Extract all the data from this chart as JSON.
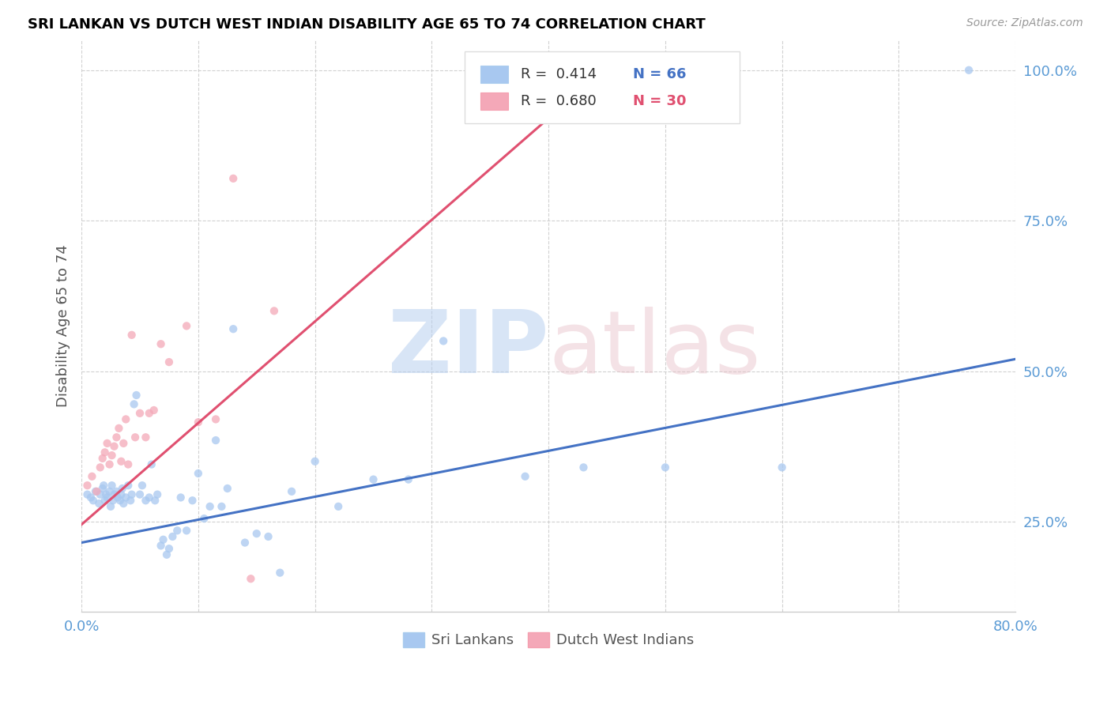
{
  "title": "SRI LANKAN VS DUTCH WEST INDIAN DISABILITY AGE 65 TO 74 CORRELATION CHART",
  "source": "Source: ZipAtlas.com",
  "ylabel": "Disability Age 65 to 74",
  "xlim": [
    0.0,
    0.8
  ],
  "ylim": [
    0.1,
    1.05
  ],
  "ytick_vals": [
    0.25,
    0.5,
    0.75,
    1.0
  ],
  "ytick_labels": [
    "25.0%",
    "50.0%",
    "75.0%",
    "100.0%"
  ],
  "xtick_positions": [
    0.0,
    0.1,
    0.2,
    0.3,
    0.4,
    0.5,
    0.6,
    0.7,
    0.8
  ],
  "sri_lankan_color": "#a8c8f0",
  "dutch_color": "#f4a8b8",
  "sri_lankan_line_color": "#4472c4",
  "dutch_line_color": "#e05070",
  "legend_r1": "R =  0.414",
  "legend_n1": "N = 66",
  "legend_r2": "R =  0.680",
  "legend_n2": "N = 30",
  "sri_lankans_x": [
    0.005,
    0.008,
    0.01,
    0.012,
    0.015,
    0.016,
    0.018,
    0.019,
    0.02,
    0.021,
    0.022,
    0.024,
    0.025,
    0.026,
    0.027,
    0.028,
    0.03,
    0.031,
    0.033,
    0.034,
    0.035,
    0.036,
    0.038,
    0.04,
    0.042,
    0.043,
    0.045,
    0.047,
    0.05,
    0.052,
    0.055,
    0.058,
    0.06,
    0.063,
    0.065,
    0.068,
    0.07,
    0.073,
    0.075,
    0.078,
    0.082,
    0.085,
    0.09,
    0.095,
    0.1,
    0.105,
    0.11,
    0.115,
    0.12,
    0.125,
    0.13,
    0.14,
    0.15,
    0.16,
    0.17,
    0.18,
    0.2,
    0.22,
    0.25,
    0.28,
    0.31,
    0.38,
    0.43,
    0.5,
    0.6,
    0.76
  ],
  "sri_lankans_y": [
    0.295,
    0.29,
    0.285,
    0.3,
    0.28,
    0.295,
    0.305,
    0.31,
    0.285,
    0.295,
    0.29,
    0.3,
    0.275,
    0.31,
    0.285,
    0.295,
    0.3,
    0.29,
    0.285,
    0.295,
    0.305,
    0.28,
    0.29,
    0.31,
    0.285,
    0.295,
    0.445,
    0.46,
    0.295,
    0.31,
    0.285,
    0.29,
    0.345,
    0.285,
    0.295,
    0.21,
    0.22,
    0.195,
    0.205,
    0.225,
    0.235,
    0.29,
    0.235,
    0.285,
    0.33,
    0.255,
    0.275,
    0.385,
    0.275,
    0.305,
    0.57,
    0.215,
    0.23,
    0.225,
    0.165,
    0.3,
    0.35,
    0.275,
    0.32,
    0.32,
    0.55,
    0.325,
    0.34,
    0.34,
    0.34,
    1.0
  ],
  "dutch_x": [
    0.005,
    0.009,
    0.013,
    0.016,
    0.018,
    0.02,
    0.022,
    0.024,
    0.026,
    0.028,
    0.03,
    0.032,
    0.034,
    0.036,
    0.038,
    0.04,
    0.043,
    0.046,
    0.05,
    0.055,
    0.058,
    0.062,
    0.068,
    0.075,
    0.09,
    0.1,
    0.115,
    0.13,
    0.145,
    0.165
  ],
  "dutch_y": [
    0.31,
    0.325,
    0.3,
    0.34,
    0.355,
    0.365,
    0.38,
    0.345,
    0.36,
    0.375,
    0.39,
    0.405,
    0.35,
    0.38,
    0.42,
    0.345,
    0.56,
    0.39,
    0.43,
    0.39,
    0.43,
    0.435,
    0.545,
    0.515,
    0.575,
    0.415,
    0.42,
    0.82,
    0.155,
    0.6
  ],
  "sri_lankan_line": {
    "x0": 0.0,
    "x1": 0.8,
    "y0": 0.215,
    "y1": 0.52
  },
  "dutch_line": {
    "x0": 0.0,
    "x1": 0.4,
    "y0": 0.245,
    "y1": 0.92
  }
}
